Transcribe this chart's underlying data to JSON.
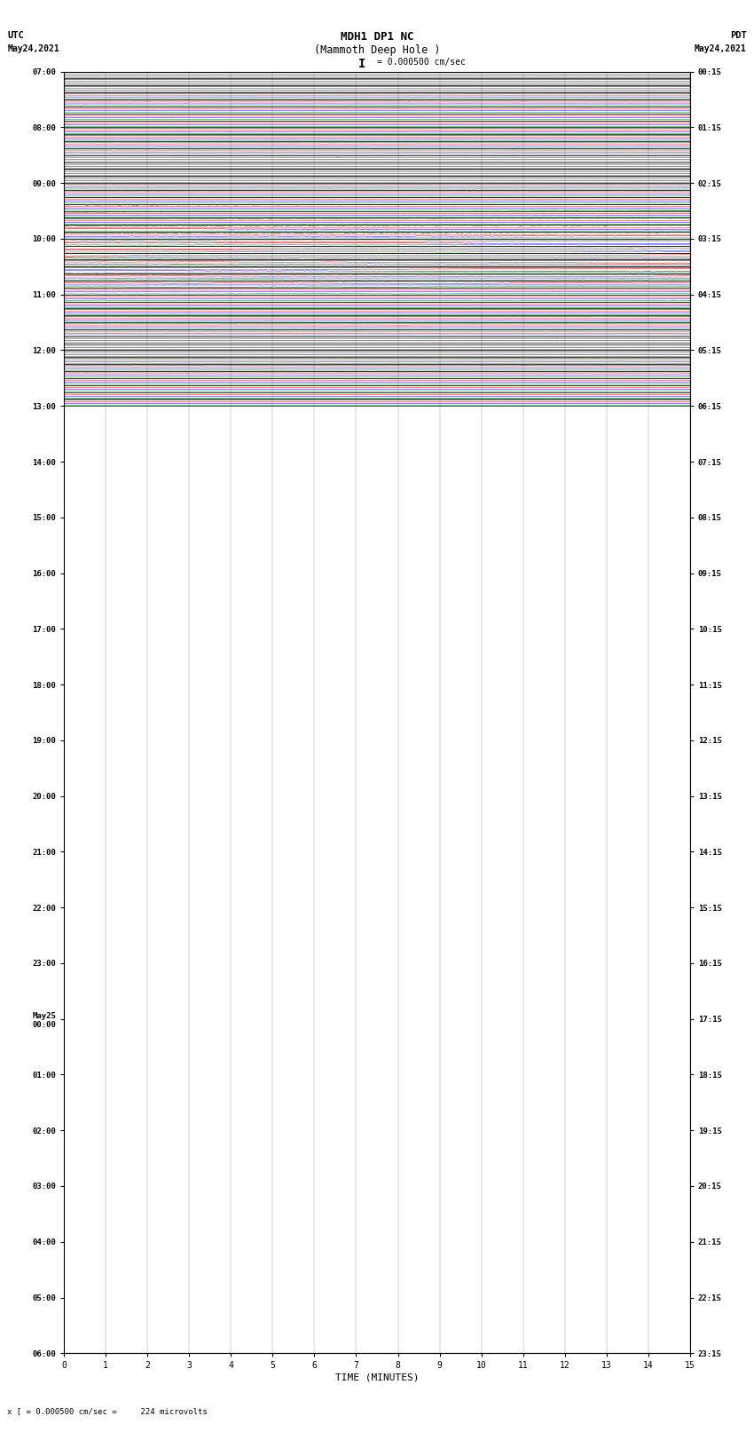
{
  "title_line1": "MDH1 DP1 NC",
  "title_line2": "(Mammoth Deep Hole )",
  "scale_text": "I = 0.000500 cm/sec",
  "left_label": "UTC",
  "right_label": "PDT",
  "date_left": "May24,2021",
  "date_right": "May24,2021",
  "xlabel": "TIME (MINUTES)",
  "bottom_note": "x [ = 0.000500 cm/sec =     224 microvolts",
  "rows": 96,
  "minutes_per_row": 15,
  "colors": [
    "black",
    "red",
    "blue",
    "green"
  ],
  "bg_color": "white",
  "fig_width": 8.5,
  "fig_height": 16.13,
  "left_tick_labels": [
    "07:00",
    "",
    "",
    "",
    "",
    "",
    "",
    "",
    "08:00",
    "",
    "",
    "",
    "",
    "",
    "",
    "",
    "09:00",
    "",
    "",
    "",
    "",
    "",
    "",
    "",
    "10:00",
    "",
    "",
    "",
    "",
    "",
    "",
    "",
    "11:00",
    "",
    "",
    "",
    "",
    "",
    "",
    "",
    "12:00",
    "",
    "",
    "",
    "",
    "",
    "",
    "",
    "13:00",
    "",
    "",
    "",
    "",
    "",
    "",
    "",
    "14:00",
    "",
    "",
    "",
    "",
    "",
    "",
    "",
    "15:00",
    "",
    "",
    "",
    "",
    "",
    "",
    "",
    "16:00",
    "",
    "",
    "",
    "",
    "",
    "",
    "",
    "17:00",
    "",
    "",
    "",
    "",
    "",
    "",
    "",
    "18:00",
    "",
    "",
    "",
    "",
    "",
    "",
    "",
    "19:00",
    "",
    "",
    "",
    "",
    "",
    "",
    "",
    "20:00",
    "",
    "",
    "",
    "",
    "",
    "",
    "",
    "21:00",
    "",
    "",
    "",
    "",
    "",
    "",
    "",
    "22:00",
    "",
    "",
    "",
    "",
    "",
    "",
    "",
    "23:00",
    "",
    "",
    "",
    "",
    "",
    "",
    "",
    "May25\n00:00",
    "",
    "",
    "",
    "",
    "",
    "",
    "",
    "01:00",
    "",
    "",
    "",
    "",
    "",
    "",
    "",
    "02:00",
    "",
    "",
    "",
    "",
    "",
    "",
    "",
    "03:00",
    "",
    "",
    "",
    "",
    "",
    "",
    "",
    "04:00",
    "",
    "",
    "",
    "",
    "",
    "",
    "",
    "05:00",
    "",
    "",
    "",
    "",
    "",
    "",
    "",
    "06:00",
    "",
    "",
    "",
    "",
    "",
    "",
    ""
  ],
  "right_tick_labels": [
    "00:15",
    "",
    "",
    "",
    "",
    "",
    "",
    "",
    "01:15",
    "",
    "",
    "",
    "",
    "",
    "",
    "",
    "02:15",
    "",
    "",
    "",
    "",
    "",
    "",
    "",
    "03:15",
    "",
    "",
    "",
    "",
    "",
    "",
    "",
    "04:15",
    "",
    "",
    "",
    "",
    "",
    "",
    "",
    "05:15",
    "",
    "",
    "",
    "",
    "",
    "",
    "",
    "06:15",
    "",
    "",
    "",
    "",
    "",
    "",
    "",
    "07:15",
    "",
    "",
    "",
    "",
    "",
    "",
    "",
    "08:15",
    "",
    "",
    "",
    "",
    "",
    "",
    "",
    "09:15",
    "",
    "",
    "",
    "",
    "",
    "",
    "",
    "10:15",
    "",
    "",
    "",
    "",
    "",
    "",
    "",
    "11:15",
    "",
    "",
    "",
    "",
    "",
    "",
    "",
    "12:15",
    "",
    "",
    "",
    "",
    "",
    "",
    "",
    "13:15",
    "",
    "",
    "",
    "",
    "",
    "",
    "",
    "14:15",
    "",
    "",
    "",
    "",
    "",
    "",
    "",
    "15:15",
    "",
    "",
    "",
    "",
    "",
    "",
    "",
    "16:15",
    "",
    "",
    "",
    "",
    "",
    "",
    "",
    "17:15",
    "",
    "",
    "",
    "",
    "",
    "",
    "",
    "18:15",
    "",
    "",
    "",
    "",
    "",
    "",
    "",
    "19:15",
    "",
    "",
    "",
    "",
    "",
    "",
    "",
    "20:15",
    "",
    "",
    "",
    "",
    "",
    "",
    "",
    "21:15",
    "",
    "",
    "",
    "",
    "",
    "",
    "",
    "22:15",
    "",
    "",
    "",
    "",
    "",
    "",
    "",
    "23:15",
    "",
    "",
    "",
    "",
    "",
    "",
    ""
  ]
}
